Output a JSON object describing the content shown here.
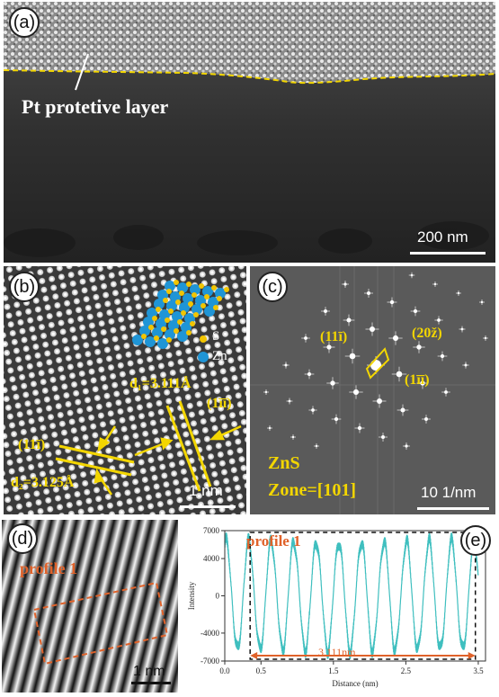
{
  "panel_a": {
    "badge": "(a)",
    "layer_label": "Pt protetive layer",
    "scale_label": "200 nm"
  },
  "panel_b": {
    "badge": "(b)",
    "legend_s": "S",
    "legend_zn": "Zn",
    "d1_label": "d₁=3.111Å",
    "d2_label": "d₂=3.125Å",
    "plane_left": "(11ī)",
    "plane_right": "(1īī)",
    "scale_label": "1 nm",
    "colors": {
      "s_atom": "#f2c500",
      "zn_atom": "#1f95d6",
      "annotation": "#f3d600"
    }
  },
  "panel_c": {
    "badge": "(c)",
    "spot_1": "(11ī)",
    "spot_2": "(20ž)",
    "spot_3": "(1īī)",
    "material": "ZnS",
    "zone": "Zone=[101]",
    "scale_label": "10 1/nm"
  },
  "panel_d": {
    "badge": "(d)",
    "profile_label": "profile 1",
    "scale_label": "1 nm"
  },
  "panel_e": {
    "badge": "(e)",
    "profile_label": "profile 1",
    "distance_label": "3.111nm"
  },
  "chart_data": {
    "type": "line",
    "title": "",
    "xlabel": "Distance (nm)",
    "ylabel": "Intensity",
    "xlim": [
      0,
      3.6
    ],
    "ylim": [
      -7000,
      7000
    ],
    "xticks": [
      "0.0",
      "0.5",
      "1.5",
      "2.5",
      "3.5"
    ],
    "xtick_values": [
      0,
      0.5,
      1.5,
      2.5,
      3.5
    ],
    "yticks": [
      "7000",
      "4000",
      "0",
      "-4000",
      "-7000"
    ],
    "ytick_values": [
      7000,
      4000,
      0,
      -4000,
      -7000
    ],
    "series": [
      {
        "color": "#3fbfbf",
        "period_nm": 0.3111,
        "x_start": 0.0,
        "x_end": 3.5,
        "amplitude": 6800
      }
    ],
    "marker_range_nm": [
      0.35,
      3.46
    ]
  }
}
